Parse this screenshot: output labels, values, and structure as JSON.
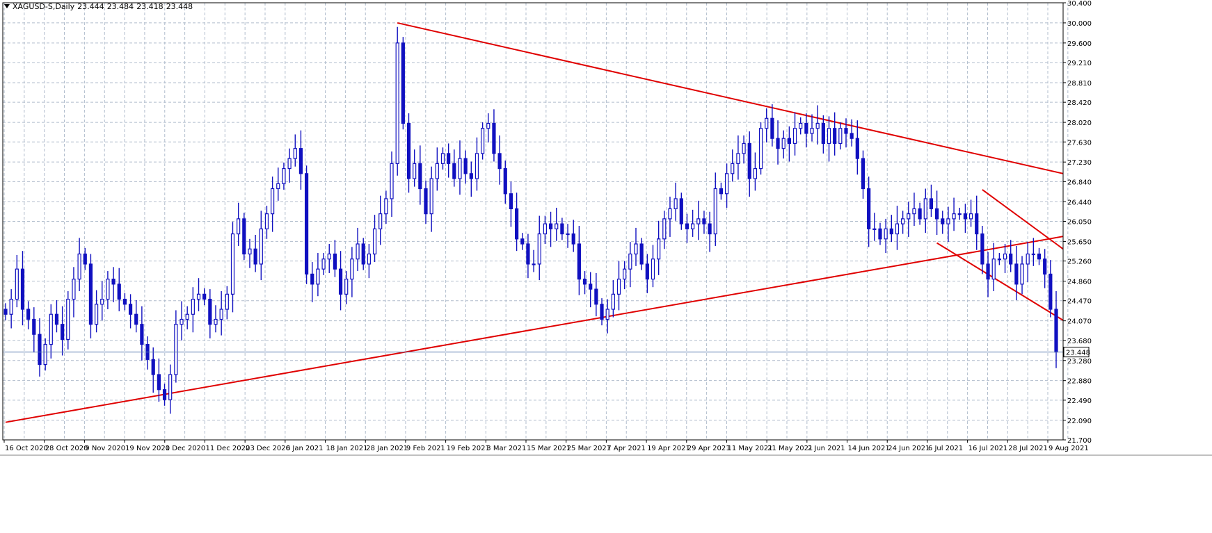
{
  "header": {
    "symbol": "XAGUSD-S,Daily",
    "open": "23.444",
    "high": "23.484",
    "low": "23.418",
    "close": "23.448"
  },
  "colors": {
    "candle": "#1010c0",
    "trendline": "#e00000",
    "grid": "#b0bccc",
    "axis": "#000000",
    "background": "#ffffff"
  },
  "chart_data": {
    "type": "candlestick",
    "y_axis_ticks": [
      "30.400",
      "30.000",
      "29.600",
      "29.210",
      "28.810",
      "28.420",
      "28.020",
      "27.630",
      "27.230",
      "26.840",
      "26.440",
      "26.050",
      "25.650",
      "25.260",
      "24.860",
      "24.470",
      "24.070",
      "23.680",
      "23.280",
      "22.880",
      "22.490",
      "22.090",
      "21.700"
    ],
    "ylim": [
      21.7,
      30.4
    ],
    "x_axis_labels": [
      "16 Oct 2020",
      "28 Oct 2020",
      "9 Nov 2020",
      "19 Nov 2020",
      "1 Dec 2020",
      "11 Dec 2020",
      "23 Dec 2020",
      "6 Jan 2021",
      "18 Jan 2021",
      "28 Jan 2021",
      "9 Feb 2021",
      "19 Feb 2021",
      "3 Mar 2021",
      "15 Mar 2021",
      "25 Mar 2021",
      "7 Apr 2021",
      "19 Apr 2021",
      "29 Apr 2021",
      "11 May 2021",
      "21 May 2021",
      "2 Jun 2021",
      "14 Jun 2021",
      "24 Jun 2021",
      "6 Jul 2021",
      "16 Jul 2021",
      "28 Jul 2021",
      "9 Aug 2021"
    ],
    "current_price": "23.448",
    "closes": [
      24.2,
      24.5,
      25.1,
      24.3,
      24.1,
      23.8,
      23.2,
      23.6,
      24.2,
      24.0,
      23.7,
      24.5,
      24.9,
      25.4,
      25.2,
      24.0,
      24.4,
      24.5,
      24.9,
      24.8,
      24.5,
      24.4,
      24.2,
      24.0,
      23.6,
      23.3,
      23.0,
      22.7,
      22.5,
      23.0,
      24.0,
      24.1,
      24.2,
      24.5,
      24.6,
      24.5,
      24.0,
      24.1,
      24.3,
      24.6,
      25.8,
      26.1,
      25.4,
      25.5,
      25.2,
      25.9,
      26.2,
      26.7,
      26.8,
      27.1,
      27.3,
      27.5,
      27.0,
      25.0,
      24.8,
      25.1,
      25.3,
      25.4,
      25.1,
      24.6,
      24.9,
      25.3,
      25.6,
      25.2,
      25.4,
      25.9,
      26.2,
      26.5,
      27.2,
      29.6,
      28.0,
      26.9,
      27.2,
      26.7,
      26.2,
      26.9,
      27.2,
      27.4,
      27.2,
      26.9,
      27.3,
      27.0,
      26.9,
      27.4,
      27.9,
      28.0,
      27.4,
      27.1,
      26.6,
      26.3,
      25.7,
      25.6,
      25.2,
      25.2,
      25.8,
      26.0,
      25.9,
      26.0,
      25.8,
      25.8,
      25.6,
      24.9,
      24.8,
      24.7,
      24.4,
      24.1,
      24.3,
      24.6,
      24.9,
      25.1,
      25.4,
      25.6,
      25.2,
      24.9,
      25.3,
      25.7,
      26.1,
      26.3,
      26.5,
      26.0,
      25.9,
      26.0,
      26.1,
      26.0,
      25.8,
      26.7,
      26.6,
      27.0,
      27.2,
      27.4,
      27.6,
      26.9,
      27.1,
      27.9,
      28.1,
      27.7,
      27.5,
      27.7,
      27.6,
      27.9,
      28.0,
      27.8,
      27.9,
      28.0,
      27.6,
      27.9,
      27.6,
      27.9,
      27.8,
      27.7,
      27.3,
      26.7,
      25.9,
      25.9,
      25.7,
      25.9,
      25.8,
      26.0,
      26.1,
      26.2,
      26.3,
      26.1,
      26.5,
      26.3,
      26.1,
      26.0,
      26.1,
      26.2,
      26.2,
      26.1,
      26.2,
      25.8,
      25.2,
      24.9,
      25.3,
      25.3,
      25.4,
      25.2,
      24.8,
      25.2,
      25.4,
      25.4,
      25.3,
      25.0,
      24.3,
      23.448
    ]
  }
}
